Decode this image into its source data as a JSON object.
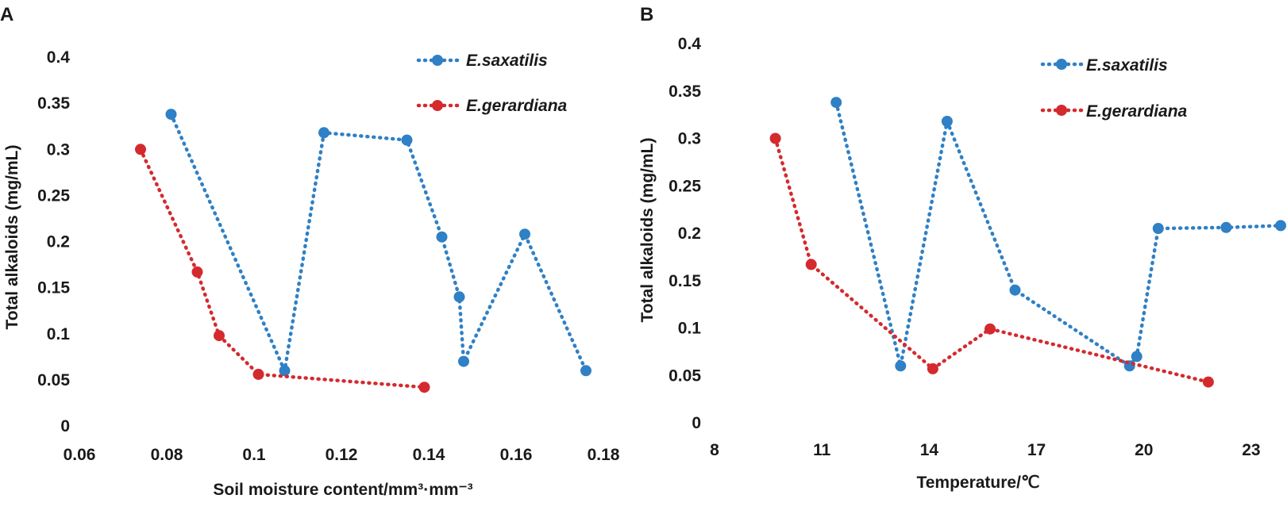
{
  "chart_data": [
    {
      "panel_label": "A",
      "type": "line",
      "title": "",
      "xlabel": "Soil moisture content/mm³·mm⁻³",
      "ylabel": "Total alkaloids (mg/mL)",
      "xlim": [
        0.06,
        0.18
      ],
      "ylim": [
        0,
        0.4
      ],
      "xticks": [
        0.06,
        0.08,
        0.1,
        0.12,
        0.14,
        0.16,
        0.18
      ],
      "xtick_labels": [
        "0.06",
        "0.08",
        "0.1",
        "0.12",
        "0.14",
        "0.16",
        "0.18"
      ],
      "yticks": [
        0,
        0.05,
        0.1,
        0.15,
        0.2,
        0.25,
        0.3,
        0.35,
        0.4
      ],
      "ytick_labels": [
        "0",
        "0.05",
        "0.1",
        "0.15",
        "0.2",
        "0.25",
        "0.3",
        "0.35",
        "0.4"
      ],
      "grid": false,
      "legend_position": "top-right",
      "series": [
        {
          "name": "E.saxatilis",
          "color": "#2f80c5",
          "points": [
            [
              0.081,
              0.338
            ],
            [
              0.107,
              0.06
            ],
            [
              0.116,
              0.318
            ],
            [
              0.135,
              0.31
            ],
            [
              0.143,
              0.205
            ],
            [
              0.147,
              0.14
            ],
            [
              0.148,
              0.07
            ],
            [
              0.162,
              0.208
            ],
            [
              0.176,
              0.06
            ]
          ]
        },
        {
          "name": "E.gerardiana",
          "color": "#d42a2e",
          "points": [
            [
              0.074,
              0.3
            ],
            [
              0.087,
              0.167
            ],
            [
              0.092,
              0.098
            ],
            [
              0.101,
              0.056
            ],
            [
              0.139,
              0.042
            ]
          ]
        }
      ]
    },
    {
      "panel_label": "B",
      "type": "line",
      "title": "",
      "xlabel": "Temperature/℃",
      "ylabel": "Total alkaloids (mg/mL)",
      "xlim": [
        8,
        24
      ],
      "ylim": [
        0,
        0.4
      ],
      "xticks": [
        8,
        11,
        14,
        17,
        20,
        23
      ],
      "xtick_labels": [
        "8",
        "11",
        "14",
        "17",
        "20",
        "23"
      ],
      "yticks": [
        0,
        0.05,
        0.1,
        0.15,
        0.2,
        0.25,
        0.3,
        0.35,
        0.4
      ],
      "ytick_labels": [
        "0",
        "0.05",
        "0.1",
        "0.15",
        "0.2",
        "0.25",
        "0.3",
        "0.35",
        "0.4"
      ],
      "grid": false,
      "legend_position": "top-right",
      "series": [
        {
          "name": "E.saxatilis",
          "color": "#2f80c5",
          "points": [
            [
              11.4,
              0.338
            ],
            [
              13.2,
              0.06
            ],
            [
              14.5,
              0.318
            ],
            [
              16.4,
              0.14
            ],
            [
              19.6,
              0.06
            ],
            [
              19.8,
              0.07
            ],
            [
              20.4,
              0.205
            ],
            [
              22.3,
              0.206
            ],
            [
              24.0,
              0.208
            ]
          ]
        },
        {
          "name": "E.gerardiana",
          "color": "#d42a2e",
          "points": [
            [
              9.7,
              0.3
            ],
            [
              10.7,
              0.167
            ],
            [
              14.1,
              0.057
            ],
            [
              15.7,
              0.099
            ],
            [
              21.8,
              0.043
            ]
          ]
        }
      ]
    }
  ]
}
